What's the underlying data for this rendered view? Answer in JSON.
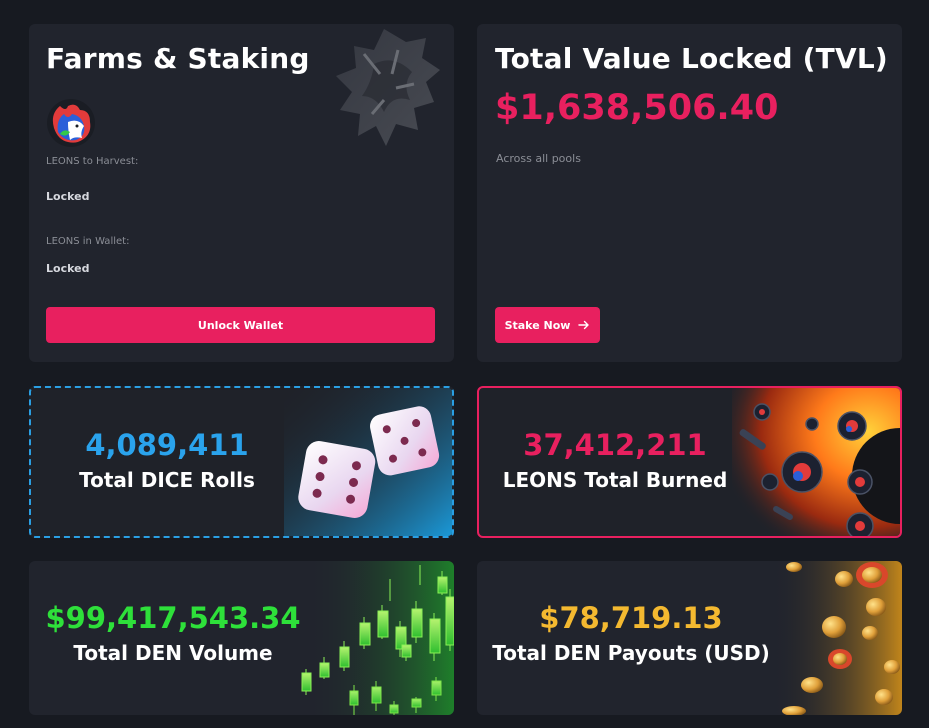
{
  "farms": {
    "title": "Farms & Staking",
    "harvest_label": "LEONS to Harvest:",
    "harvest_value": "Locked",
    "wallet_label": "LEONS in Wallet:",
    "wallet_value": "Locked",
    "unlock_button": "Unlock Wallet"
  },
  "tvl": {
    "title": "Total Value Locked (TVL)",
    "value": "$1,638,506.40",
    "subtitle": "Across all pools",
    "stake_button": "Stake Now",
    "stake_icon": "arrow-right-icon"
  },
  "dice": {
    "value": "4,089,411",
    "label": "Total DICE Rolls"
  },
  "burn": {
    "value": "37,412,211",
    "label": "LEONS Total Burned"
  },
  "volume": {
    "value": "$99,417,543.34",
    "label": "Total DEN Volume"
  },
  "payouts": {
    "value": "$78,719.13",
    "label": "Total DEN Payouts (USD)"
  },
  "colors": {
    "background": "#171a21",
    "card": "#21242d",
    "accent": "#e8205f",
    "dice": "#2aa3ec",
    "volume": "#2ee03a",
    "payouts": "#f4b930"
  }
}
